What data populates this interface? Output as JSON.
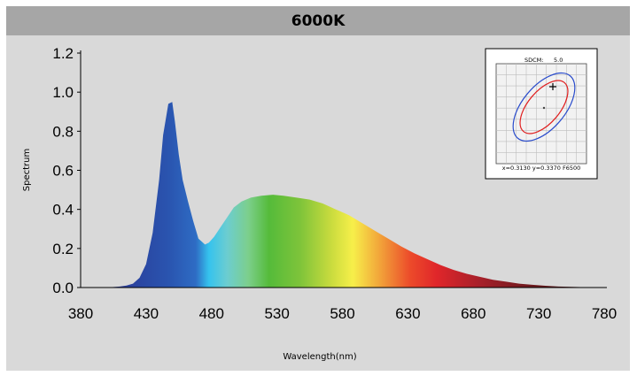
{
  "title": "6000K",
  "chart_data": {
    "type": "area",
    "title": "6000K",
    "xlabel": "Wavelength(nm)",
    "ylabel": "Spectrum",
    "xlim": [
      380,
      780
    ],
    "ylim": [
      0,
      1.2
    ],
    "x_ticks": [
      "380",
      "430",
      "480",
      "530",
      "580",
      "630",
      "680",
      "730",
      "780"
    ],
    "y_ticks": [
      "0.0",
      "0.2",
      "0.4",
      "0.6",
      "0.8",
      "1.0",
      "1.2"
    ],
    "grid": false,
    "series": [
      {
        "x": [
          380,
          400,
          410,
          415,
          420,
          425,
          430,
          435,
          440,
          443,
          447,
          450,
          452,
          455,
          458,
          462,
          466,
          470,
          475,
          478,
          482,
          487,
          492,
          497,
          503,
          510,
          518,
          527,
          535,
          545,
          555,
          565,
          575,
          585,
          595,
          605,
          615,
          625,
          635,
          645,
          655,
          665,
          675,
          685,
          695,
          705,
          715,
          725,
          735,
          745,
          755,
          765,
          775,
          780
        ],
        "y": [
          0.0,
          0.0,
          0.005,
          0.01,
          0.02,
          0.05,
          0.12,
          0.28,
          0.55,
          0.78,
          0.94,
          0.95,
          0.85,
          0.68,
          0.55,
          0.44,
          0.34,
          0.25,
          0.22,
          0.23,
          0.26,
          0.31,
          0.36,
          0.41,
          0.44,
          0.46,
          0.47,
          0.475,
          0.47,
          0.46,
          0.45,
          0.43,
          0.4,
          0.37,
          0.33,
          0.29,
          0.25,
          0.21,
          0.175,
          0.145,
          0.115,
          0.09,
          0.07,
          0.055,
          0.04,
          0.03,
          0.02,
          0.014,
          0.009,
          0.005,
          0.003,
          0.002,
          0.001,
          0.0
        ]
      }
    ]
  },
  "inset": {
    "title_label": "SDCM:",
    "title_value": "5.0",
    "footer": "x=0.3130 y=0.3370 F6500"
  }
}
